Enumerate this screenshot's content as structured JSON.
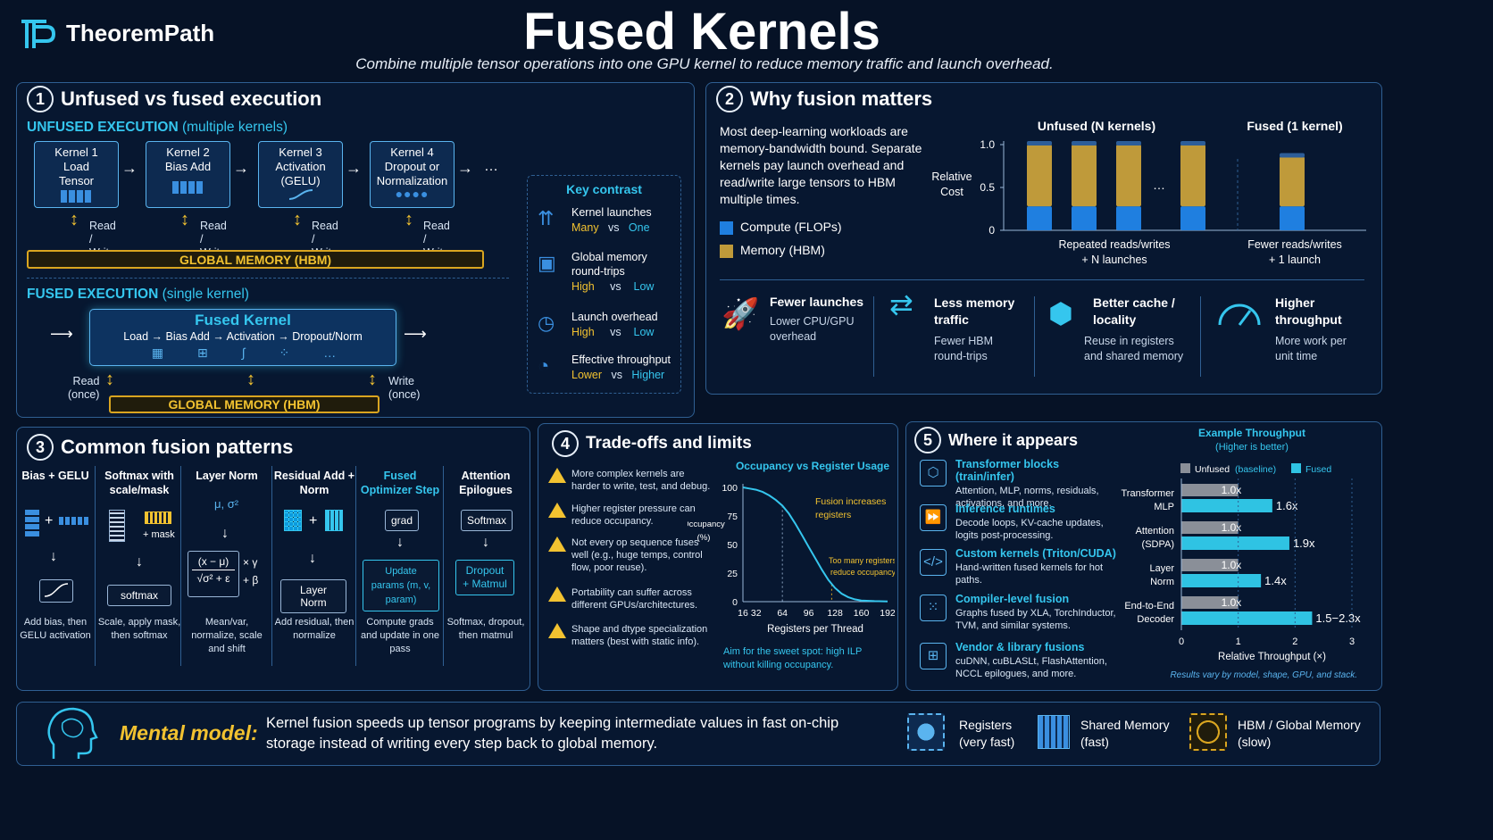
{
  "brand": {
    "name": "TheoremPath"
  },
  "header": {
    "title": "Fused Kernels",
    "subtitle": "Combine multiple tensor operations into one GPU kernel to reduce memory traffic and launch overhead."
  },
  "section1": {
    "number": "1",
    "title": "Unfused vs fused execution",
    "unfused_label": "UNFUSED EXECUTION",
    "unfused_sub": "(multiple kernels)",
    "kernels": [
      {
        "name": "Kernel 1",
        "desc": "Load Tensor"
      },
      {
        "name": "Kernel 2",
        "desc": "Bias Add"
      },
      {
        "name": "Kernel 3",
        "desc": "Activation (GELU)"
      },
      {
        "name": "Kernel 4",
        "desc": "Dropout or Normalization"
      }
    ],
    "ellipsis": "…",
    "rw": [
      "Read /",
      "Write"
    ],
    "global_memory": "GLOBAL MEMORY (HBM)",
    "fused_label": "FUSED EXECUTION",
    "fused_sub": "(single kernel)",
    "fused_title": "Fused Kernel",
    "fused_chain": "Load → Bias Add → Activation → Dropout/Norm",
    "read_once": [
      "Read",
      "(once)"
    ],
    "write_once": [
      "Write",
      "(once)"
    ],
    "key_contrast": {
      "title": "Key contrast",
      "vs": "vs",
      "items": [
        {
          "label": "Kernel launches",
          "a": "Many",
          "b": "One",
          "b_color": "#35c6ee"
        },
        {
          "label": "Global memory round-trips",
          "a": "High",
          "b": "Low",
          "b_color": "#35c6ee"
        },
        {
          "label": "Launch overhead",
          "a": "High",
          "b": "Low",
          "b_color": "#35c6ee"
        },
        {
          "label": "Effective throughput",
          "a": "Lower",
          "b": "Higher",
          "b_color": "#35c6ee"
        }
      ]
    }
  },
  "section2": {
    "number": "2",
    "title": "Why fusion matters",
    "body": "Most deep-learning workloads are memory-bandwidth bound. Separate kernels pay launch overhead and read/write large tensors to HBM multiple times.",
    "legend": [
      {
        "label": "Compute (FLOPs)",
        "color": "#1f7fe0"
      },
      {
        "label": "Memory (HBM)",
        "color": "#bf9a3a"
      }
    ],
    "benefits": [
      {
        "title": "Fewer launches",
        "desc": "Lower CPU/GPU overhead",
        "icon": "rocket-icon"
      },
      {
        "title": "Less memory traffic",
        "desc": "Fewer HBM round-trips",
        "icon": "arrows-icon"
      },
      {
        "title": "Better cache / locality",
        "desc": "Reuse in registers and shared memory",
        "icon": "cube-icon"
      },
      {
        "title": "Higher throughput",
        "desc": "More work per unit time",
        "icon": "gauge-icon"
      }
    ]
  },
  "section3": {
    "number": "3",
    "title": "Common fusion patterns",
    "patterns": [
      {
        "title": "Bias + GELU",
        "caption": "Add bias, then GELU activation",
        "highlight": false
      },
      {
        "title": "Softmax with scale/mask",
        "caption": "Scale, apply mask, then softmax",
        "box": "softmax",
        "extra": "+ mask",
        "highlight": false
      },
      {
        "title": "Layer Norm",
        "caption": "Mean/var, normalize, scale and shift",
        "sym": "μ, σ²",
        "formula_top": "(x − μ)",
        "formula_bot": "√σ² + ε",
        "gamma": "× γ",
        "beta": "+ β",
        "highlight": false
      },
      {
        "title": "Residual Add + Norm",
        "caption": "Add residual, then normalize",
        "box": "Layer Norm",
        "highlight": false
      },
      {
        "title": "Fused Optimizer Step",
        "caption": "Compute grads and update in one pass",
        "box_top": "grad",
        "box": "Update params (m, v, param)",
        "highlight": true
      },
      {
        "title": "Attention Epilogues",
        "caption": "Softmax, dropout, then matmul",
        "box_top": "Softmax",
        "box": "Dropout + Matmul",
        "highlight": false
      }
    ]
  },
  "section4": {
    "number": "4",
    "title": "Trade-offs and limits",
    "items": [
      "More complex kernels are harder to write, test, and debug.",
      "Higher register pressure can reduce occupancy.",
      "Not every op sequence fuses well (e.g., huge temps, control flow, poor reuse).",
      "Portability can suffer across different GPUs/architectures.",
      "Shape and dtype specialization matters (best with static info)."
    ],
    "note": "Aim for the sweet spot: high ILP without killing occupancy."
  },
  "section5": {
    "number": "5",
    "title": "Where it appears",
    "items": [
      {
        "title": "Transformer blocks (train/infer)",
        "desc": "Attention, MLP, norms, residuals, activations, and more.",
        "icon": "cube-icon"
      },
      {
        "title": "Inference runtimes",
        "desc": "Decode loops, KV-cache updates, logits post-processing.",
        "icon": "fast-forward-icon"
      },
      {
        "title": "Custom kernels (Triton/CUDA)",
        "desc": "Hand-written fused kernels for hot paths.",
        "icon": "code-icon"
      },
      {
        "title": "Compiler-level fusion",
        "desc": "Graphs fused by XLA, TorchInductor, TVM, and similar systems.",
        "icon": "chip-icon"
      },
      {
        "title": "Vendor & library fusions",
        "desc": "cuDNN, cuBLASLt, FlashAttention, NCCL epilogues, and more.",
        "icon": "blocks-icon"
      }
    ]
  },
  "mental_model": {
    "label": "Mental model:",
    "text": "Kernel fusion speeds up tensor programs by keeping intermediate values in fast on-chip storage instead of writing every step back to global memory.",
    "legend": [
      {
        "title": "Registers",
        "sub": "(very fast)"
      },
      {
        "title": "Shared Memory",
        "sub": "(fast)"
      },
      {
        "title": "HBM / Global Memory",
        "sub": "(slow)"
      }
    ]
  },
  "chart_data": [
    {
      "type": "bar",
      "stacked": true,
      "group_titles": [
        "Unfused (N kernels)",
        "Fused (1 kernel)"
      ],
      "ylabel": "Relative Cost",
      "yticks": [
        0,
        0.5,
        1.0
      ],
      "ylim": [
        0,
        1.0
      ],
      "ellipsis": "…",
      "categories": [
        "",
        "",
        "",
        "",
        ""
      ],
      "series": [
        {
          "name": "Compute (FLOPs)",
          "values": [
            0.28,
            0.28,
            0.28,
            0.28,
            0.28
          ],
          "color": "#1f7fe0"
        },
        {
          "name": "Memory (HBM)",
          "values": [
            0.72,
            0.72,
            0.72,
            0.72,
            0.58
          ],
          "color": "#bf9a3a"
        }
      ],
      "captions": [
        "Repeated reads/writes + N launches",
        "Fewer reads/writes + 1 launch"
      ]
    },
    {
      "type": "line",
      "title": "Occupancy vs Register Usage",
      "xlabel": "Registers per Thread",
      "ylabel": "Occupancy (%)",
      "xticks": [
        16,
        32,
        64,
        96,
        128,
        160,
        192
      ],
      "yticks": [
        0,
        25,
        50,
        75,
        100
      ],
      "xlim": [
        16,
        192
      ],
      "ylim": [
        0,
        100
      ],
      "x": [
        16,
        24,
        32,
        40,
        48,
        56,
        64,
        72,
        80,
        88,
        96,
        104,
        112,
        120,
        128,
        136,
        144,
        152,
        160,
        176,
        192
      ],
      "y": [
        100,
        99,
        98,
        96,
        93,
        89,
        84,
        77,
        68,
        58,
        48,
        38,
        28,
        19,
        12,
        7,
        4,
        2,
        1,
        0.5,
        0.2
      ],
      "annotations": [
        "Fusion increases registers",
        "Too many registers reduce occupancy"
      ]
    },
    {
      "type": "bar",
      "orientation": "horizontal",
      "title": "Example Throughput",
      "subtitle": "(Higher is better)",
      "xlabel": "Relative Throughput (×)",
      "xticks": [
        0,
        1,
        2,
        3
      ],
      "xlim": [
        0,
        3
      ],
      "categories": [
        "Transformer MLP",
        "Attention (SDPA)",
        "Layer Norm",
        "End-to-End Decoder"
      ],
      "series": [
        {
          "name": "Unfused (baseline)",
          "values": [
            1.0,
            1.0,
            1.0,
            1.0
          ],
          "labels": [
            "1.0x",
            "1.0x",
            "1.0x",
            "1.0x"
          ],
          "color": "#8a8f98"
        },
        {
          "name": "Fused",
          "values": [
            1.6,
            1.9,
            1.4,
            2.3
          ],
          "labels": [
            "1.6x",
            "1.9x",
            "1.4x",
            "1.5−2.3x"
          ],
          "color": "#2fc3e3"
        }
      ],
      "note": "Results vary by model, shape, GPU, and stack."
    }
  ]
}
